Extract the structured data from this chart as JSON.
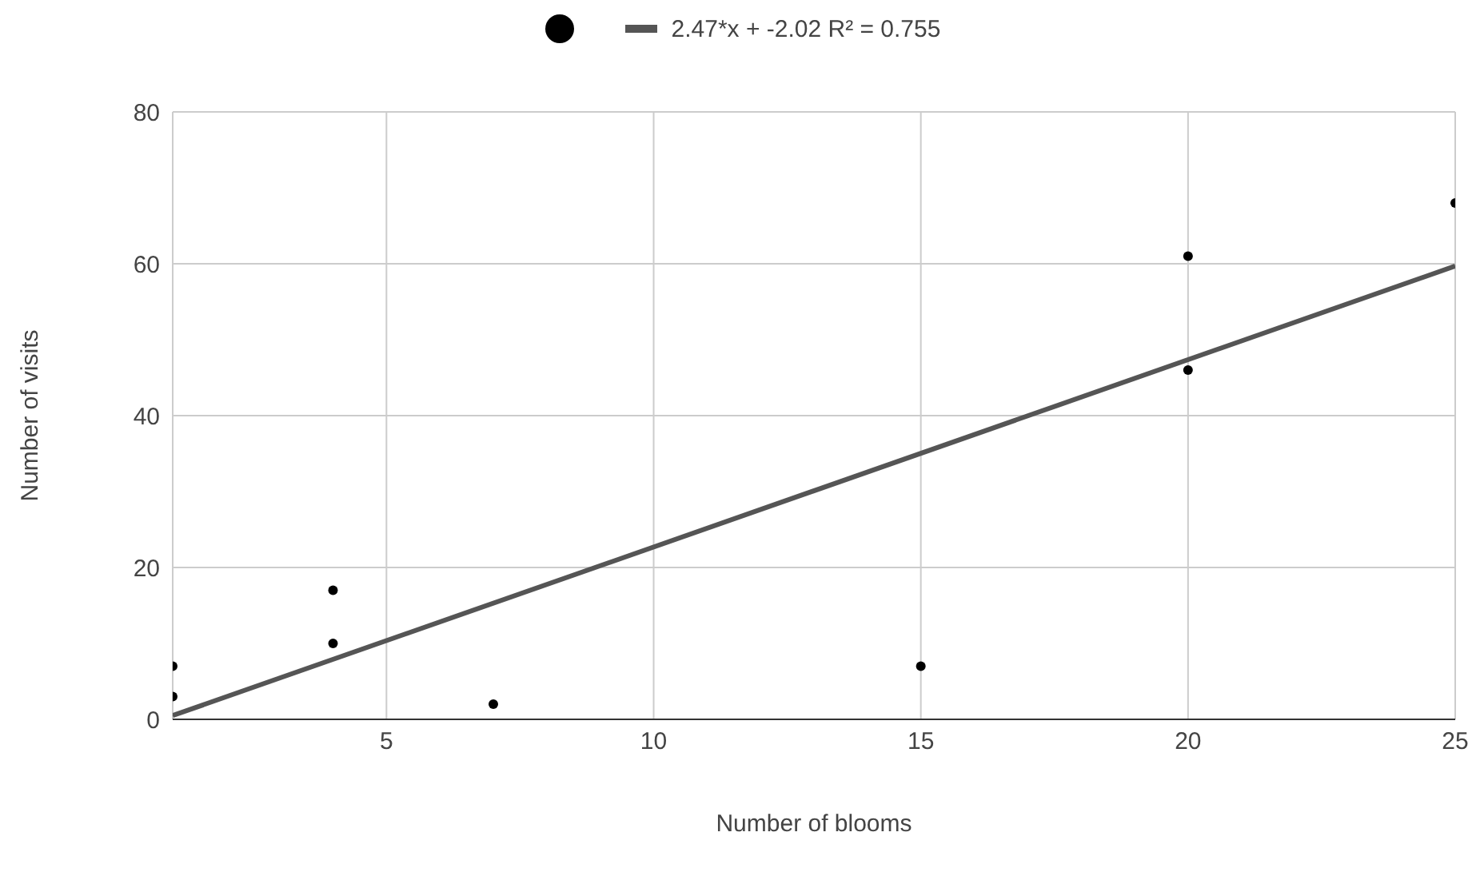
{
  "chart_data": {
    "type": "scatter",
    "xlabel": "Number of blooms",
    "ylabel": "Number of visits",
    "xlim": [
      1,
      25
    ],
    "xticks": [
      5,
      10,
      15,
      20,
      25
    ],
    "ylim": [
      0,
      80
    ],
    "yticks": [
      0,
      20,
      40,
      60,
      80
    ],
    "grid": true,
    "legend": "top",
    "series": [
      {
        "color": "#000000",
        "marker": "circle",
        "x": [
          1,
          1,
          4,
          4,
          7,
          15,
          20,
          20,
          25
        ],
        "values": [
          7,
          3,
          17,
          10,
          2,
          7,
          61,
          46,
          68
        ]
      },
      {
        "type": "line",
        "name": "2.47*x + -2.02 R² = 0.755",
        "color": "#555555",
        "x": [
          1,
          25
        ],
        "values": [
          0.5,
          59.7
        ],
        "marker": "none"
      }
    ]
  }
}
